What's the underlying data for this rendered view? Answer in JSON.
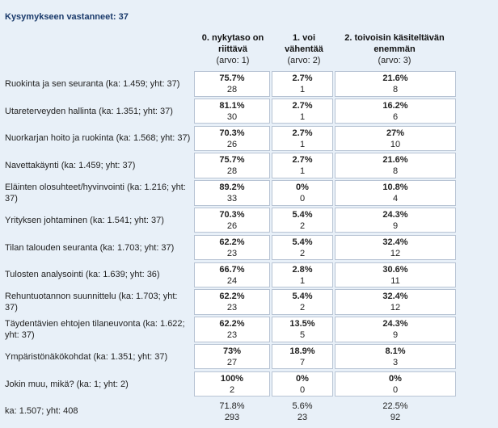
{
  "title": "Kysymykseen vastanneet: 37",
  "columns": [
    {
      "label": "0. nykytaso on riittävä",
      "sub": "(arvo: 1)"
    },
    {
      "label": "1. voi vähentää",
      "sub": "(arvo: 2)"
    },
    {
      "label": "2. toivoisin käsiteltävän enemmän",
      "sub": "(arvo: 3)"
    }
  ],
  "rows": [
    {
      "label": "Ruokinta ja sen seuranta (ka: 1.459; yht: 37)",
      "cells": [
        {
          "pct": "75.7%",
          "cnt": "28"
        },
        {
          "pct": "2.7%",
          "cnt": "1"
        },
        {
          "pct": "21.6%",
          "cnt": "8"
        }
      ]
    },
    {
      "label": "Utareterveyden hallinta (ka: 1.351; yht: 37)",
      "cells": [
        {
          "pct": "81.1%",
          "cnt": "30"
        },
        {
          "pct": "2.7%",
          "cnt": "1"
        },
        {
          "pct": "16.2%",
          "cnt": "6"
        }
      ]
    },
    {
      "label": "Nuorkarjan hoito ja ruokinta (ka: 1.568; yht: 37)",
      "cells": [
        {
          "pct": "70.3%",
          "cnt": "26"
        },
        {
          "pct": "2.7%",
          "cnt": "1"
        },
        {
          "pct": "27%",
          "cnt": "10"
        }
      ]
    },
    {
      "label": "Navettakäynti (ka: 1.459; yht: 37)",
      "cells": [
        {
          "pct": "75.7%",
          "cnt": "28"
        },
        {
          "pct": "2.7%",
          "cnt": "1"
        },
        {
          "pct": "21.6%",
          "cnt": "8"
        }
      ]
    },
    {
      "label": "Eläinten olosuhteet/hyvinvointi (ka: 1.216; yht: 37)",
      "cells": [
        {
          "pct": "89.2%",
          "cnt": "33"
        },
        {
          "pct": "0%",
          "cnt": "0"
        },
        {
          "pct": "10.8%",
          "cnt": "4"
        }
      ]
    },
    {
      "label": "Yrityksen johtaminen (ka: 1.541; yht: 37)",
      "cells": [
        {
          "pct": "70.3%",
          "cnt": "26"
        },
        {
          "pct": "5.4%",
          "cnt": "2"
        },
        {
          "pct": "24.3%",
          "cnt": "9"
        }
      ]
    },
    {
      "label": "Tilan talouden seuranta (ka: 1.703; yht: 37)",
      "cells": [
        {
          "pct": "62.2%",
          "cnt": "23"
        },
        {
          "pct": "5.4%",
          "cnt": "2"
        },
        {
          "pct": "32.4%",
          "cnt": "12"
        }
      ]
    },
    {
      "label": "Tulosten analysointi (ka: 1.639; yht: 36)",
      "cells": [
        {
          "pct": "66.7%",
          "cnt": "24"
        },
        {
          "pct": "2.8%",
          "cnt": "1"
        },
        {
          "pct": "30.6%",
          "cnt": "11"
        }
      ]
    },
    {
      "label": "Rehuntuotannon suunnittelu (ka: 1.703; yht: 37)",
      "cells": [
        {
          "pct": "62.2%",
          "cnt": "23"
        },
        {
          "pct": "5.4%",
          "cnt": "2"
        },
        {
          "pct": "32.4%",
          "cnt": "12"
        }
      ]
    },
    {
      "label": "Täydentävien ehtojen tilaneuvonta (ka: 1.622; yht: 37)",
      "cells": [
        {
          "pct": "62.2%",
          "cnt": "23"
        },
        {
          "pct": "13.5%",
          "cnt": "5"
        },
        {
          "pct": "24.3%",
          "cnt": "9"
        }
      ]
    },
    {
      "label": "Ympäristönäkökohdat (ka: 1.351; yht: 37)",
      "cells": [
        {
          "pct": "73%",
          "cnt": "27"
        },
        {
          "pct": "18.9%",
          "cnt": "7"
        },
        {
          "pct": "8.1%",
          "cnt": "3"
        }
      ]
    },
    {
      "label": "Jokin muu, mikä? (ka: 1; yht: 2)",
      "cells": [
        {
          "pct": "100%",
          "cnt": "2"
        },
        {
          "pct": "0%",
          "cnt": "0"
        },
        {
          "pct": "0%",
          "cnt": "0"
        }
      ]
    }
  ],
  "total": {
    "label": "ka: 1.507; yht: 408",
    "cells": [
      {
        "pct": "71.8%",
        "cnt": "293"
      },
      {
        "pct": "5.6%",
        "cnt": "23"
      },
      {
        "pct": "22.5%",
        "cnt": "92"
      }
    ]
  }
}
